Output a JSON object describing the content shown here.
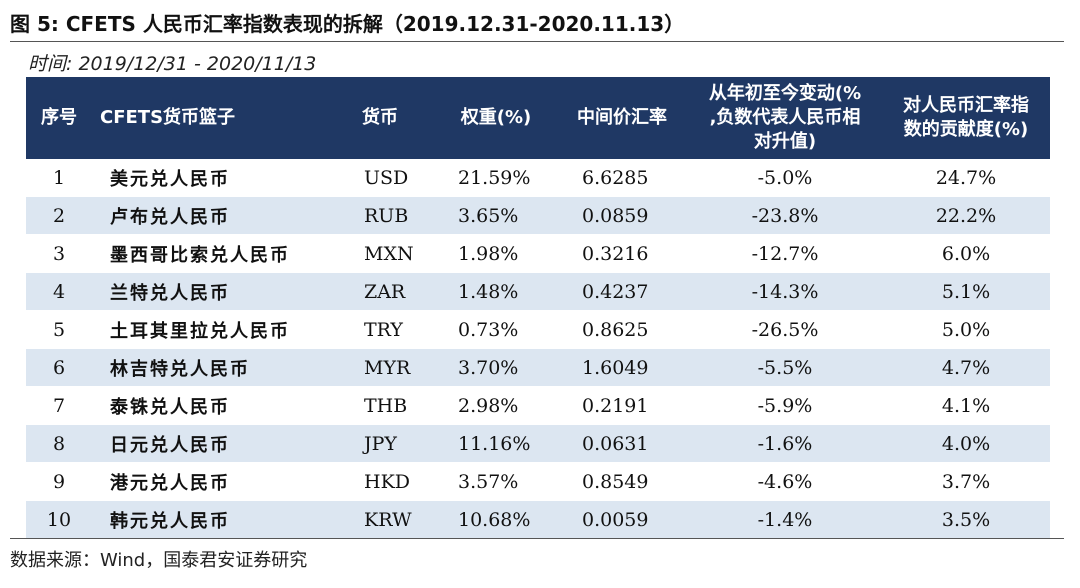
{
  "figure": {
    "title": "图 5:  CFETS 人民币汇率指数表现的拆解（2019.12.31-2020.11.13）",
    "date_range": "时间: 2019/12/31 - 2020/11/13",
    "source": "数据来源：Wind，国泰君安证券研究"
  },
  "table": {
    "headers": {
      "index": "序号",
      "pair": "CFETS货币篮子",
      "currency": "货币",
      "weight": "权重(%)",
      "rate": "中间价汇率",
      "change_1": "从年初至今变动(%",
      "change_2": ",负数代表人民币相",
      "change_3": "对升值)",
      "contrib_1": "对人民币汇率指",
      "contrib_2": "数的贡献度(%)"
    },
    "rows": [
      {
        "index": "1",
        "pair": "美元兑人民币",
        "currency": "USD",
        "weight": "21.59%",
        "rate": "6.6285",
        "change": "-5.0%",
        "contribution": "24.7%"
      },
      {
        "index": "2",
        "pair": "卢布兑人民币",
        "currency": "RUB",
        "weight": "3.65%",
        "rate": "0.0859",
        "change": "-23.8%",
        "contribution": "22.2%"
      },
      {
        "index": "3",
        "pair": "墨西哥比索兑人民币",
        "currency": "MXN",
        "weight": "1.98%",
        "rate": "0.3216",
        "change": "-12.7%",
        "contribution": "6.0%"
      },
      {
        "index": "4",
        "pair": "兰特兑人民币",
        "currency": "ZAR",
        "weight": "1.48%",
        "rate": "0.4237",
        "change": "-14.3%",
        "contribution": "5.1%"
      },
      {
        "index": "5",
        "pair": "土耳其里拉兑人民币",
        "currency": "TRY",
        "weight": "0.73%",
        "rate": "0.8625",
        "change": "-26.5%",
        "contribution": "5.0%"
      },
      {
        "index": "6",
        "pair": "林吉特兑人民币",
        "currency": "MYR",
        "weight": "3.70%",
        "rate": "1.6049",
        "change": "-5.5%",
        "contribution": "4.7%"
      },
      {
        "index": "7",
        "pair": "泰铢兑人民币",
        "currency": "THB",
        "weight": "2.98%",
        "rate": "0.2191",
        "change": "-5.9%",
        "contribution": "4.1%"
      },
      {
        "index": "8",
        "pair": "日元兑人民币",
        "currency": "JPY",
        "weight": "11.16%",
        "rate": "0.0631",
        "change": "-1.6%",
        "contribution": "4.0%"
      },
      {
        "index": "9",
        "pair": "港元兑人民币",
        "currency": "HKD",
        "weight": "3.57%",
        "rate": "0.8549",
        "change": "-4.6%",
        "contribution": "3.7%"
      },
      {
        "index": "10",
        "pair": "韩元兑人民币",
        "currency": "KRW",
        "weight": "10.68%",
        "rate": "0.0059",
        "change": "-1.4%",
        "contribution": "3.5%"
      }
    ]
  },
  "colors": {
    "header_bg": "#1f3864",
    "alt_row_bg": "#dce6f1"
  }
}
